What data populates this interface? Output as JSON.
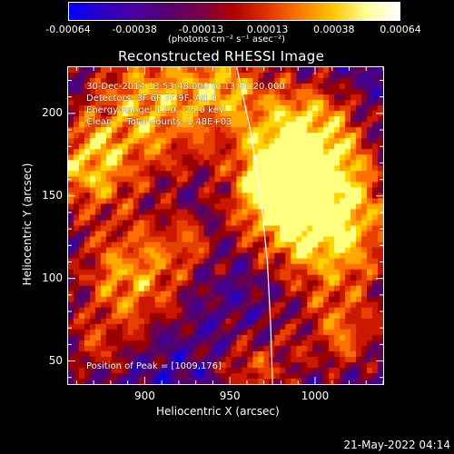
{
  "colorbar": {
    "tick_labels": [
      "-0.00064",
      "-0.00038",
      "-0.00013",
      "0.00013",
      "0.00038",
      "0.00064"
    ],
    "units_label": "(photons cm⁻² s⁻¹ asec⁻²)",
    "range": [
      -0.00064,
      0.00064
    ],
    "stops": [
      "#0000ff",
      "#2a00c8",
      "#4b00a0",
      "#55006e",
      "#7a0046",
      "#b00000",
      "#e23200",
      "#ff7a00",
      "#ffc800",
      "#ffff9a",
      "#ffffff"
    ]
  },
  "chart_data": {
    "type": "heatmap",
    "title": "Reconstructed RHESSI Image",
    "xlabel": "Heliocentric X (arcsec)",
    "ylabel": "Heliocentric Y (arcsec)",
    "xlim": [
      855,
      1040
    ],
    "ylim": [
      36,
      228
    ],
    "x_ticks": [
      900,
      950,
      1000
    ],
    "y_ticks": [
      50,
      100,
      150,
      200
    ],
    "info_lines": [
      "30-Dec-2014 13:53:48.000 to 13:56:20.000",
      "Detectors: 3F 6F 7F 9F, Att 0",
      "Energy Range: 12.0 - 25.0 keV",
      "Clean     Total counts: 1.48E+03"
    ],
    "peak_label": "Position of Peak = [1009,176]",
    "peak_position": [
      1009,
      176
    ],
    "limb_curve": [
      [
        954,
        228
      ],
      [
        962,
        190
      ],
      [
        968,
        150
      ],
      [
        972,
        110
      ],
      [
        974,
        70
      ],
      [
        975,
        36
      ]
    ],
    "grid": false
  },
  "footer": {
    "timestamp": "21-May-2022 04:14"
  }
}
